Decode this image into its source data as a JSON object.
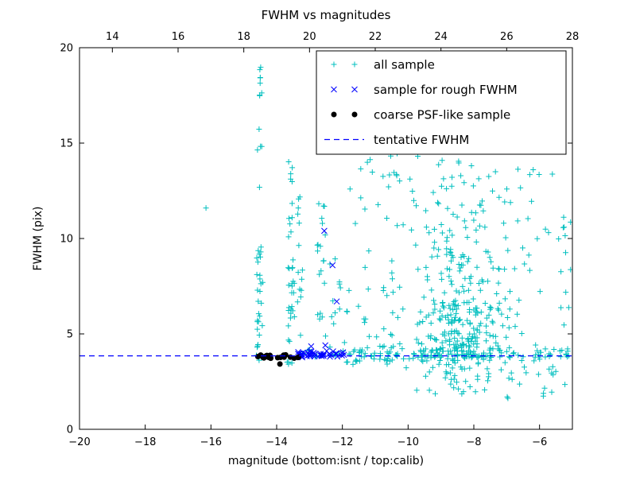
{
  "chart_data": {
    "type": "scatter",
    "title": "FWHM vs magnitudes",
    "xlabel": "magnitude (bottom:isnt / top:calib)",
    "ylabel": "FWHM (pix)",
    "xlim": [
      -20,
      -5
    ],
    "top_xlim": [
      13,
      28
    ],
    "ylim": [
      0,
      20
    ],
    "x_ticks_bottom": [
      -20,
      -18,
      -16,
      -14,
      -12,
      -10,
      -8,
      -6
    ],
    "x_ticks_top": [
      14,
      16,
      18,
      20,
      22,
      24,
      26,
      28
    ],
    "y_ticks": [
      0,
      5,
      10,
      15,
      20
    ],
    "grid": false,
    "legend_position": "upper right",
    "tentative_fwhm": 3.85,
    "series": [
      {
        "name": "all sample",
        "marker": "plus",
        "color": "#00bfbf",
        "outliers": [
          [
            -16.15,
            11.6
          ]
        ],
        "clusters": [
          {
            "n": 30,
            "x": {
              "dist": "uniform",
              "min": -14.62,
              "max": -14.42
            },
            "y": {
              "dist": "uniform",
              "min": 3.5,
              "max": 9.5
            }
          },
          {
            "n": 14,
            "x": {
              "dist": "uniform",
              "min": -14.6,
              "max": -14.45
            },
            "y": {
              "dist": "uniform",
              "min": 9.5,
              "max": 19.2
            }
          },
          {
            "n": 26,
            "x": {
              "dist": "uniform",
              "min": -13.68,
              "max": -13.45
            },
            "y": {
              "dist": "uniform",
              "min": 3.4,
              "max": 8.5
            }
          },
          {
            "n": 12,
            "x": {
              "dist": "uniform",
              "min": -13.65,
              "max": -13.5
            },
            "y": {
              "dist": "uniform",
              "min": 8.5,
              "max": 14.8
            }
          },
          {
            "n": 14,
            "x": {
              "dist": "uniform",
              "min": -13.42,
              "max": -13.2
            },
            "y": {
              "dist": "uniform",
              "min": 3.5,
              "max": 12.3
            }
          },
          {
            "n": 20,
            "x": {
              "dist": "uniform",
              "min": -12.78,
              "max": -12.5
            },
            "y": {
              "dist": "uniform",
              "min": 3.6,
              "max": 12.0
            }
          },
          {
            "n": 40,
            "x": {
              "dist": "uniform",
              "min": -12.45,
              "max": -10.3
            },
            "y": {
              "dist": "uniform",
              "min": 3.4,
              "max": 9.0
            }
          },
          {
            "n": 18,
            "x": {
              "dist": "uniform",
              "min": -11.9,
              "max": -10.0
            },
            "y": {
              "dist": "uniform",
              "min": 9.0,
              "max": 15.3
            }
          },
          {
            "n": 170,
            "x": {
              "dist": "normal",
              "mean": -8.35,
              "sd": 0.75
            },
            "y": {
              "dist": "normal",
              "mean": 4.7,
              "sd": 0.9
            }
          },
          {
            "n": 110,
            "x": {
              "dist": "normal",
              "mean": -8.2,
              "sd": 1.0
            },
            "y": {
              "dist": "uniform",
              "min": 5.5,
              "max": 9.5
            }
          },
          {
            "n": 70,
            "x": {
              "dist": "uniform",
              "min": -10.6,
              "max": -5.15
            },
            "y": {
              "dist": "uniform",
              "min": 9.5,
              "max": 15.5
            }
          },
          {
            "n": 140,
            "x": {
              "dist": "uniform",
              "min": -11.9,
              "max": -5.1
            },
            "y": {
              "dist": "normal",
              "mean": 3.9,
              "sd": 0.22
            }
          },
          {
            "n": 45,
            "x": {
              "dist": "uniform",
              "min": -9.8,
              "max": -5.1
            },
            "y": {
              "dist": "uniform",
              "min": 1.6,
              "max": 3.5
            }
          },
          {
            "n": 12,
            "x": {
              "dist": "uniform",
              "min": -5.35,
              "max": -5.05
            },
            "y": {
              "dist": "uniform",
              "min": 3.8,
              "max": 12.2
            }
          },
          {
            "n": 25,
            "x": {
              "dist": "normal",
              "mean": -8.6,
              "sd": 0.5
            },
            "y": {
              "dist": "uniform",
              "min": 9.0,
              "max": 13.5
            }
          },
          {
            "n": 12,
            "x": {
              "dist": "uniform",
              "min": -13.3,
              "max": -11.95
            },
            "y": {
              "dist": "normal",
              "mean": 3.92,
              "sd": 0.15
            }
          }
        ]
      },
      {
        "name": "sample for rough FWHM",
        "marker": "x",
        "color": "#0000ff",
        "outliers": [
          [
            -12.55,
            10.4
          ],
          [
            -12.3,
            8.6
          ],
          [
            -12.17,
            6.7
          ],
          [
            -12.52,
            4.4
          ],
          [
            -12.95,
            4.35
          ]
        ],
        "clusters": [
          {
            "n": 48,
            "x": {
              "dist": "uniform",
              "min": -13.35,
              "max": -11.95
            },
            "y": {
              "dist": "normal",
              "mean": 3.92,
              "sd": 0.1
            }
          }
        ]
      },
      {
        "name": "coarse PSF-like sample",
        "marker": "dot",
        "color": "#000000",
        "outliers": [
          [
            -13.9,
            3.42
          ]
        ],
        "clusters": [
          {
            "n": 22,
            "x": {
              "dist": "uniform",
              "min": -14.58,
              "max": -13.28
            },
            "y": {
              "dist": "normal",
              "mean": 3.82,
              "sd": 0.06
            }
          }
        ]
      },
      {
        "name": "tentative FWHM",
        "type": "hline",
        "style": "dashed",
        "color": "#0000ff",
        "y": 3.85
      }
    ],
    "legend": [
      {
        "label": "all sample",
        "marker": "plus",
        "color": "#00bfbf"
      },
      {
        "label": "sample for rough FWHM",
        "marker": "x",
        "color": "#0000ff"
      },
      {
        "label": "coarse PSF-like sample",
        "marker": "dot",
        "color": "#000000"
      },
      {
        "label": "tentative FWHM",
        "marker": "dashed",
        "color": "#0000ff"
      }
    ]
  }
}
